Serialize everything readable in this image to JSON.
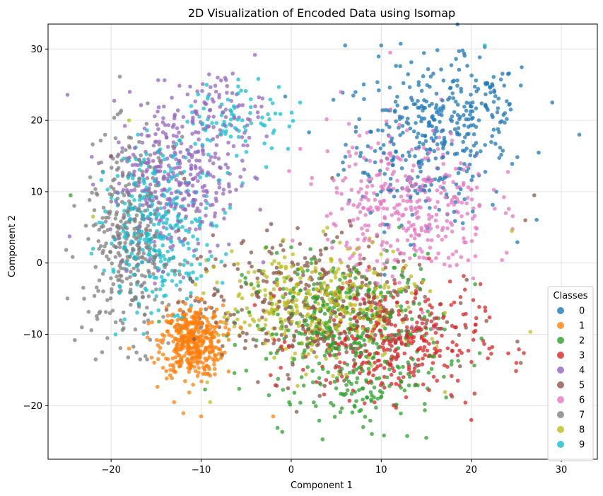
{
  "chart_data": {
    "type": "scatter",
    "title": "2D Visualization of Encoded Data using Isomap",
    "xlabel": "Component 1",
    "ylabel": "Component 2",
    "xlim": [
      -27,
      34
    ],
    "ylim": [
      -27.5,
      33.5
    ],
    "xticks": [
      -20,
      -10,
      0,
      10,
      20,
      30
    ],
    "yticks": [
      -20,
      -10,
      0,
      10,
      20,
      30
    ],
    "grid": true,
    "legend": {
      "title": "Classes",
      "placement": "lower-right"
    },
    "series": [
      {
        "name": "0",
        "color": "#1f77b4",
        "clusters": [
          {
            "cx": 15,
            "cy": 17,
            "sx": 4.5,
            "sy": 5.5,
            "n": 320
          },
          {
            "cx": 20,
            "cy": 22,
            "sx": 3.5,
            "sy": 3.5,
            "n": 90
          }
        ],
        "points": [
          [
            32,
            18
          ],
          [
            6,
            30.5
          ],
          [
            10,
            30.5
          ],
          [
            21.5,
            30.3
          ],
          [
            29,
            22.5
          ]
        ]
      },
      {
        "name": "1",
        "color": "#ff7f0e",
        "clusters": [
          {
            "cx": -11,
            "cy": -11,
            "sx": 1.7,
            "sy": 2.5,
            "n": 420
          }
        ],
        "points": [
          [
            -10,
            -21.5
          ],
          [
            -2,
            -21.5
          ],
          [
            -13,
            -19.5
          ],
          [
            -18,
            -12
          ]
        ]
      },
      {
        "name": "2",
        "color": "#2ca02c",
        "clusters": [
          {
            "cx": 6,
            "cy": -9,
            "sx": 5.5,
            "sy": 5,
            "n": 380
          },
          {
            "cx": 9,
            "cy": -18,
            "sx": 3.5,
            "sy": 2.5,
            "n": 70
          }
        ],
        "points": [
          [
            -24.5,
            9.5
          ],
          [
            15,
            -24.5
          ],
          [
            8,
            -23
          ],
          [
            12,
            5
          ]
        ]
      },
      {
        "name": "3",
        "color": "#d62728",
        "clusters": [
          {
            "cx": 11,
            "cy": -11,
            "sx": 5,
            "sy": 4,
            "n": 350
          }
        ],
        "points": [
          [
            22,
            -12
          ],
          [
            25,
            -14
          ],
          [
            20,
            -22
          ]
        ]
      },
      {
        "name": "4",
        "color": "#9467bd",
        "clusters": [
          {
            "cx": -13,
            "cy": 12,
            "sx": 3.5,
            "sy": 5.5,
            "n": 330
          },
          {
            "cx": -8,
            "cy": 21,
            "sx": 2.5,
            "sy": 3,
            "n": 90
          }
        ],
        "points": [
          [
            -22,
            11
          ],
          [
            -4,
            12
          ]
        ]
      },
      {
        "name": "5",
        "color": "#8c564b",
        "clusters": [
          {
            "cx": 2,
            "cy": -6,
            "sx": 7,
            "sy": 5,
            "n": 380
          }
        ],
        "points": [
          [
            27,
            9.5
          ],
          [
            26,
            6
          ],
          [
            25.5,
            -14
          ],
          [
            -20,
            15
          ]
        ]
      },
      {
        "name": "6",
        "color": "#e377c2",
        "clusters": [
          {
            "cx": 13,
            "cy": 8,
            "sx": 4.5,
            "sy": 5.5,
            "n": 380
          }
        ],
        "points": [
          [
            11,
            29.5
          ],
          [
            1,
            16
          ],
          [
            5.5,
            24
          ]
        ]
      },
      {
        "name": "7",
        "color": "#7f7f7f",
        "clusters": [
          {
            "cx": -18,
            "cy": 3,
            "sx": 2.5,
            "sy": 7,
            "n": 360
          }
        ],
        "points": [
          [
            -23,
            -5
          ],
          [
            -21,
            -12.5
          ],
          [
            -16,
            -13.5
          ],
          [
            -19.5,
            17.5
          ]
        ]
      },
      {
        "name": "8",
        "color": "#bcbd22",
        "clusters": [
          {
            "cx": 3,
            "cy": -6,
            "sx": 5.5,
            "sy": 4,
            "n": 360
          }
        ],
        "points": [
          [
            -22,
            6.5
          ],
          [
            -9,
            -19.5
          ],
          [
            24.5,
            4.5
          ],
          [
            -18,
            20
          ]
        ]
      },
      {
        "name": "9",
        "color": "#17becf",
        "clusters": [
          {
            "cx": -14.5,
            "cy": 5,
            "sx": 3,
            "sy": 5.5,
            "n": 320
          },
          {
            "cx": -6,
            "cy": 20,
            "sx": 3,
            "sy": 3,
            "n": 80
          }
        ],
        "points": [
          [
            21.5,
            30.5
          ],
          [
            -19.5,
            -10
          ],
          [
            -22,
            2
          ],
          [
            1,
            22.5
          ]
        ]
      }
    ]
  }
}
